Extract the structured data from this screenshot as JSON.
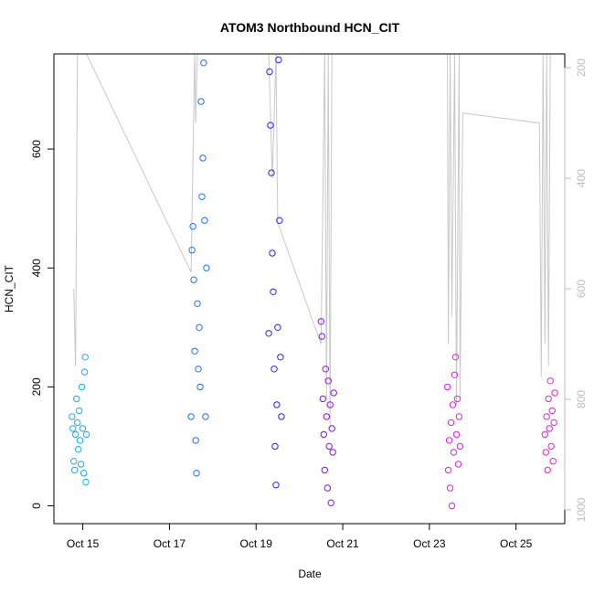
{
  "chart_data": {
    "type": "scatter",
    "title": "ATOM3 Northbound HCN_CIT",
    "xlabel": "Date",
    "ylabel": "HCN_CIT",
    "x_range_days": [
      "2016-10-14T08:00",
      "2016-10-26T03:00"
    ],
    "ylim": [
      -30,
      760
    ],
    "y_ticks": [
      0,
      200,
      400,
      600
    ],
    "x_ticks": [
      {
        "date": "2016-10-15",
        "label": "Oct 15"
      },
      {
        "date": "2016-10-17",
        "label": "Oct 17"
      },
      {
        "date": "2016-10-19",
        "label": "Oct 19"
      },
      {
        "date": "2016-10-21",
        "label": "Oct 21"
      },
      {
        "date": "2016-10-23",
        "label": "Oct 23"
      },
      {
        "date": "2016-10-25",
        "label": "Oct 25"
      }
    ],
    "y2lim_reversed": [
      1025,
      175
    ],
    "y2_ticks": [
      200,
      400,
      600,
      800,
      1000
    ],
    "grid": false,
    "series": [
      {
        "color": "#1eaaf0",
        "points": [
          [
            "2016-10-14T18:00",
            150
          ],
          [
            "2016-10-14T18:30",
            130
          ],
          [
            "2016-10-14T19:00",
            75
          ],
          [
            "2016-10-14T19:30",
            60
          ],
          [
            "2016-10-14T20:00",
            120
          ],
          [
            "2016-10-14T20:30",
            180
          ],
          [
            "2016-10-14T21:00",
            140
          ],
          [
            "2016-10-14T21:30",
            95
          ],
          [
            "2016-10-14T22:00",
            160
          ],
          [
            "2016-10-14T22:30",
            110
          ],
          [
            "2016-10-14T23:00",
            70
          ],
          [
            "2016-10-14T23:30",
            200
          ],
          [
            "2016-10-15T00:00",
            130
          ],
          [
            "2016-10-15T00:30",
            55
          ],
          [
            "2016-10-15T01:00",
            225
          ],
          [
            "2016-10-15T01:20",
            250
          ],
          [
            "2016-10-15T01:40",
            40
          ],
          [
            "2016-10-15T02:00",
            120
          ]
        ]
      },
      {
        "color": "#1f6ef0",
        "points": [
          [
            "2016-10-17T12:00",
            150
          ],
          [
            "2016-10-17T12:30",
            430
          ],
          [
            "2016-10-17T13:00",
            470
          ],
          [
            "2016-10-17T13:30",
            380
          ],
          [
            "2016-10-17T14:00",
            260
          ],
          [
            "2016-10-17T14:30",
            110
          ],
          [
            "2016-10-17T15:00",
            55
          ],
          [
            "2016-10-17T15:30",
            340
          ],
          [
            "2016-10-17T16:00",
            230
          ],
          [
            "2016-10-17T16:30",
            300
          ],
          [
            "2016-10-17T17:00",
            200
          ],
          [
            "2016-10-17T17:30",
            680
          ],
          [
            "2016-10-17T18:00",
            520
          ],
          [
            "2016-10-17T18:30",
            585
          ],
          [
            "2016-10-17T19:00",
            745
          ],
          [
            "2016-10-17T19:30",
            480
          ],
          [
            "2016-10-17T20:00",
            150
          ],
          [
            "2016-10-17T20:30",
            400
          ]
        ]
      },
      {
        "color": "#2b1ff0",
        "points": [
          [
            "2016-10-19T07:00",
            290
          ],
          [
            "2016-10-19T07:30",
            730
          ],
          [
            "2016-10-19T08:00",
            640
          ],
          [
            "2016-10-19T08:30",
            560
          ],
          [
            "2016-10-19T09:00",
            425
          ],
          [
            "2016-10-19T09:30",
            360
          ],
          [
            "2016-10-19T10:00",
            230
          ],
          [
            "2016-10-19T10:30",
            100
          ],
          [
            "2016-10-19T11:00",
            35
          ],
          [
            "2016-10-19T11:30",
            170
          ],
          [
            "2016-10-19T12:00",
            300
          ],
          [
            "2016-10-19T12:30",
            750
          ],
          [
            "2016-10-19T13:00",
            480
          ],
          [
            "2016-10-19T13:30",
            250
          ],
          [
            "2016-10-19T14:00",
            150
          ]
        ]
      },
      {
        "color": "#8a10f0",
        "points": [
          [
            "2016-10-20T12:00",
            310
          ],
          [
            "2016-10-20T12:30",
            285
          ],
          [
            "2016-10-20T13:00",
            180
          ],
          [
            "2016-10-20T13:30",
            120
          ],
          [
            "2016-10-20T14:00",
            60
          ],
          [
            "2016-10-20T14:30",
            230
          ],
          [
            "2016-10-20T15:00",
            150
          ],
          [
            "2016-10-20T15:30",
            30
          ],
          [
            "2016-10-20T16:00",
            210
          ],
          [
            "2016-10-20T16:30",
            100
          ],
          [
            "2016-10-20T17:00",
            170
          ],
          [
            "2016-10-20T17:30",
            5
          ],
          [
            "2016-10-20T18:00",
            130
          ],
          [
            "2016-10-20T18:30",
            90
          ],
          [
            "2016-10-20T19:00",
            190
          ]
        ]
      },
      {
        "color": "#e020e6",
        "points": [
          [
            "2016-10-23T10:00",
            200
          ],
          [
            "2016-10-23T10:30",
            60
          ],
          [
            "2016-10-23T11:00",
            110
          ],
          [
            "2016-10-23T11:30",
            30
          ],
          [
            "2016-10-23T12:00",
            140
          ],
          [
            "2016-10-23T12:30",
            0
          ],
          [
            "2016-10-23T13:00",
            170
          ],
          [
            "2016-10-23T13:30",
            90
          ],
          [
            "2016-10-23T14:00",
            220
          ],
          [
            "2016-10-23T14:30",
            250
          ],
          [
            "2016-10-23T15:00",
            120
          ],
          [
            "2016-10-23T15:30",
            180
          ],
          [
            "2016-10-23T16:00",
            70
          ],
          [
            "2016-10-23T16:30",
            150
          ],
          [
            "2016-10-23T17:00",
            100
          ]
        ]
      },
      {
        "color": "#f01ec8",
        "points": [
          [
            "2016-10-25T16:00",
            120
          ],
          [
            "2016-10-25T16:30",
            90
          ],
          [
            "2016-10-25T17:00",
            150
          ],
          [
            "2016-10-25T17:30",
            60
          ],
          [
            "2016-10-25T18:00",
            180
          ],
          [
            "2016-10-25T18:30",
            130
          ],
          [
            "2016-10-25T19:00",
            210
          ],
          [
            "2016-10-25T19:30",
            100
          ],
          [
            "2016-10-25T20:00",
            160
          ],
          [
            "2016-10-25T20:30",
            75
          ],
          [
            "2016-10-25T21:00",
            140
          ],
          [
            "2016-10-25T21:30",
            190
          ]
        ]
      }
    ],
    "secondary_line": {
      "color": "#c8c8c8",
      "points": [
        [
          "2016-10-14T19:00",
          600
        ],
        [
          "2016-10-14T20:00",
          740
        ],
        [
          "2016-10-14T21:00",
          175
        ],
        [
          "2016-10-15T02:00",
          175
        ],
        [
          "2016-10-17T12:00",
          570
        ],
        [
          "2016-10-17T14:00",
          175
        ],
        [
          "2016-10-17T14:30",
          300
        ],
        [
          "2016-10-17T15:30",
          175
        ],
        [
          "2016-10-17T18:30",
          175
        ],
        [
          "2016-10-18T00:00",
          175
        ],
        [
          "2016-10-19T07:00",
          175
        ],
        [
          "2016-10-19T09:00",
          400
        ],
        [
          "2016-10-19T11:00",
          175
        ],
        [
          "2016-10-19T12:00",
          480
        ],
        [
          "2016-10-20T12:00",
          700
        ],
        [
          "2016-10-20T14:00",
          175
        ],
        [
          "2016-10-20T15:00",
          800
        ],
        [
          "2016-10-20T16:00",
          175
        ],
        [
          "2016-10-20T17:00",
          850
        ],
        [
          "2016-10-20T18:00",
          175
        ],
        [
          "2016-10-23T10:00",
          175
        ],
        [
          "2016-10-23T10:30",
          700
        ],
        [
          "2016-10-23T11:30",
          175
        ],
        [
          "2016-10-23T12:30",
          650
        ],
        [
          "2016-10-23T14:00",
          175
        ],
        [
          "2016-10-23T15:00",
          810
        ],
        [
          "2016-10-23T16:30",
          175
        ],
        [
          "2016-10-23T17:00",
          800
        ],
        [
          "2016-10-23T18:30",
          282
        ],
        [
          "2016-10-25T13:00",
          300
        ],
        [
          "2016-10-25T14:00",
          760
        ],
        [
          "2016-10-25T15:00",
          175
        ],
        [
          "2016-10-25T16:00",
          700
        ],
        [
          "2016-10-25T17:00",
          175
        ],
        [
          "2016-10-25T18:00",
          740
        ],
        [
          "2016-10-25T19:00",
          175
        ]
      ]
    }
  }
}
